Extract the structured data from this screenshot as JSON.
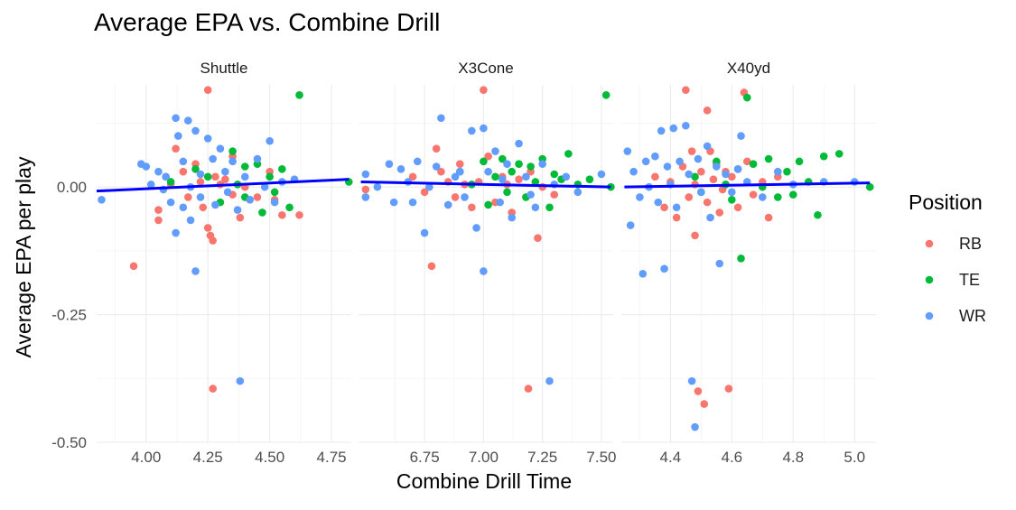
{
  "chart_data": {
    "type": "scatter",
    "title": "Average EPA vs. Combine Drill",
    "xlabel": "Combine Drill Time",
    "ylabel": "Average EPA per play",
    "ylim": [
      -0.5,
      0.2
    ],
    "y_ticks": [
      -0.5,
      -0.25,
      0.0
    ],
    "y_tick_labels": [
      "-0.50",
      "-0.25",
      "0.00"
    ],
    "legend": {
      "title": "Position",
      "placement": "right",
      "entries": [
        {
          "label": "RB",
          "color": "#F8766D"
        },
        {
          "label": "TE",
          "color": "#00BA38"
        },
        {
          "label": "WR",
          "color": "#619CFF"
        }
      ]
    },
    "fit_line_color": "#0000FF",
    "grid": true,
    "panels": [
      {
        "name": "Shuttle",
        "xlim": [
          3.8,
          4.83
        ],
        "x_ticks": [
          4.0,
          4.25,
          4.5,
          4.75
        ],
        "x_tick_labels": [
          "4.00",
          "4.25",
          "4.50",
          "4.75"
        ],
        "fit": [
          [
            3.8,
            -0.008
          ],
          [
            4.82,
            0.015
          ]
        ],
        "points": {
          "RB": [
            [
              3.95,
              -0.155
            ],
            [
              4.05,
              -0.045
            ],
            [
              4.05,
              -0.065
            ],
            [
              4.08,
              0.02
            ],
            [
              4.1,
              0.005
            ],
            [
              4.12,
              0.075
            ],
            [
              4.15,
              0.03
            ],
            [
              4.17,
              -0.02
            ],
            [
              4.2,
              0.045
            ],
            [
              4.22,
              0.01
            ],
            [
              4.23,
              -0.04
            ],
            [
              4.25,
              0.19
            ],
            [
              4.25,
              -0.08
            ],
            [
              4.26,
              -0.095
            ],
            [
              4.27,
              -0.105
            ],
            [
              4.27,
              -0.395
            ],
            [
              4.28,
              0.02
            ],
            [
              4.3,
              0.005
            ],
            [
              4.32,
              0.015
            ],
            [
              4.35,
              0.06
            ],
            [
              4.35,
              -0.015
            ],
            [
              4.38,
              -0.06
            ],
            [
              4.4,
              0.0
            ],
            [
              4.45,
              -0.02
            ],
            [
              4.5,
              0.03
            ],
            [
              4.52,
              -0.025
            ],
            [
              4.55,
              -0.055
            ],
            [
              4.62,
              -0.055
            ]
          ],
          "TE": [
            [
              4.1,
              0.01
            ],
            [
              4.2,
              0.035
            ],
            [
              4.25,
              0.02
            ],
            [
              4.3,
              -0.03
            ],
            [
              4.35,
              0.07
            ],
            [
              4.37,
              0.005
            ],
            [
              4.4,
              0.04
            ],
            [
              4.4,
              -0.02
            ],
            [
              4.45,
              0.045
            ],
            [
              4.47,
              -0.05
            ],
            [
              4.5,
              0.02
            ],
            [
              4.52,
              -0.01
            ],
            [
              4.55,
              0.035
            ],
            [
              4.58,
              -0.04
            ],
            [
              4.62,
              0.18
            ],
            [
              4.82,
              0.01
            ]
          ],
          "WR": [
            [
              3.82,
              -0.025
            ],
            [
              3.98,
              0.045
            ],
            [
              4.0,
              0.04
            ],
            [
              4.02,
              0.005
            ],
            [
              4.05,
              0.03
            ],
            [
              4.07,
              -0.005
            ],
            [
              4.08,
              0.02
            ],
            [
              4.1,
              -0.03
            ],
            [
              4.12,
              0.135
            ],
            [
              4.12,
              -0.09
            ],
            [
              4.13,
              0.1
            ],
            [
              4.15,
              0.05
            ],
            [
              4.15,
              -0.04
            ],
            [
              4.17,
              0.13
            ],
            [
              4.18,
              0.0
            ],
            [
              4.18,
              -0.065
            ],
            [
              4.2,
              -0.165
            ],
            [
              4.2,
              0.11
            ],
            [
              4.22,
              0.025
            ],
            [
              4.22,
              -0.02
            ],
            [
              4.25,
              0.095
            ],
            [
              4.27,
              0.055
            ],
            [
              4.28,
              -0.035
            ],
            [
              4.3,
              0.075
            ],
            [
              4.32,
              0.03
            ],
            [
              4.33,
              -0.01
            ],
            [
              4.35,
              0.05
            ],
            [
              4.37,
              -0.045
            ],
            [
              4.38,
              -0.38
            ],
            [
              4.4,
              0.02
            ],
            [
              4.42,
              -0.025
            ],
            [
              4.45,
              0.055
            ],
            [
              4.48,
              0.0
            ],
            [
              4.5,
              0.09
            ],
            [
              4.52,
              -0.03
            ],
            [
              4.55,
              0.01
            ],
            [
              4.6,
              0.015
            ]
          ]
        }
      },
      {
        "name": "X3Cone",
        "xlim": [
          6.47,
          7.55
        ],
        "x_ticks": [
          6.75,
          7.0,
          7.25,
          7.5
        ],
        "x_tick_labels": [
          "6.75",
          "7.00",
          "7.25",
          "7.50"
        ],
        "fit": [
          [
            6.48,
            0.01
          ],
          [
            7.54,
            0.0
          ]
        ],
        "points": {
          "RB": [
            [
              6.5,
              -0.005
            ],
            [
              6.7,
              0.02
            ],
            [
              6.75,
              -0.01
            ],
            [
              6.78,
              -0.155
            ],
            [
              6.8,
              0.075
            ],
            [
              6.82,
              0.03
            ],
            [
              6.85,
              0.01
            ],
            [
              6.88,
              -0.02
            ],
            [
              6.9,
              0.045
            ],
            [
              6.92,
              0.005
            ],
            [
              6.95,
              -0.04
            ],
            [
              6.98,
              0.01
            ],
            [
              7.0,
              0.19
            ],
            [
              7.02,
              0.06
            ],
            [
              7.05,
              -0.03
            ],
            [
              7.08,
              0.02
            ],
            [
              7.1,
              0.005
            ],
            [
              7.12,
              -0.05
            ],
            [
              7.15,
              0.015
            ],
            [
              7.19,
              -0.395
            ],
            [
              7.2,
              0.03
            ],
            [
              7.23,
              -0.1
            ],
            [
              7.25,
              0.0
            ],
            [
              7.3,
              -0.015
            ]
          ],
          "TE": [
            [
              6.9,
              0.03
            ],
            [
              6.95,
              0.005
            ],
            [
              7.0,
              0.05
            ],
            [
              7.02,
              -0.035
            ],
            [
              7.05,
              0.02
            ],
            [
              7.08,
              0.055
            ],
            [
              7.1,
              -0.01
            ],
            [
              7.12,
              0.03
            ],
            [
              7.15,
              0.045
            ],
            [
              7.18,
              -0.02
            ],
            [
              7.2,
              0.04
            ],
            [
              7.22,
              0.01
            ],
            [
              7.25,
              0.055
            ],
            [
              7.28,
              -0.04
            ],
            [
              7.3,
              0.025
            ],
            [
              7.33,
              0.015
            ],
            [
              7.36,
              0.065
            ],
            [
              7.4,
              0.005
            ],
            [
              7.45,
              0.015
            ],
            [
              7.52,
              0.18
            ],
            [
              7.54,
              0.0
            ]
          ],
          "WR": [
            [
              6.5,
              0.025
            ],
            [
              6.5,
              -0.02
            ],
            [
              6.55,
              0.0
            ],
            [
              6.6,
              0.045
            ],
            [
              6.62,
              -0.03
            ],
            [
              6.65,
              0.035
            ],
            [
              6.68,
              0.01
            ],
            [
              6.7,
              -0.03
            ],
            [
              6.72,
              0.05
            ],
            [
              6.75,
              -0.09
            ],
            [
              6.77,
              0.0
            ],
            [
              6.8,
              0.04
            ],
            [
              6.82,
              0.135
            ],
            [
              6.85,
              -0.035
            ],
            [
              6.88,
              0.02
            ],
            [
              6.9,
              0.03
            ],
            [
              6.92,
              -0.02
            ],
            [
              6.95,
              0.11
            ],
            [
              6.97,
              -0.08
            ],
            [
              7.0,
              0.115
            ],
            [
              7.0,
              -0.165
            ],
            [
              7.02,
              0.03
            ],
            [
              7.05,
              0.07
            ],
            [
              7.07,
              -0.03
            ],
            [
              7.08,
              0.015
            ],
            [
              7.1,
              0.045
            ],
            [
              7.12,
              -0.06
            ],
            [
              7.15,
              0.085
            ],
            [
              7.18,
              0.02
            ],
            [
              7.2,
              -0.015
            ],
            [
              7.22,
              -0.04
            ],
            [
              7.25,
              0.045
            ],
            [
              7.28,
              -0.38
            ],
            [
              7.3,
              0.005
            ],
            [
              7.35,
              0.02
            ],
            [
              7.4,
              -0.01
            ],
            [
              7.5,
              0.025
            ]
          ]
        }
      },
      {
        "name": "X40yd",
        "xlim": [
          4.24,
          5.07
        ],
        "x_ticks": [
          4.4,
          4.6,
          4.8,
          5.0
        ],
        "x_tick_labels": [
          "4.4",
          "4.6",
          "4.8",
          "5.0"
        ],
        "fit": [
          [
            4.25,
            0.0
          ],
          [
            5.05,
            0.008
          ]
        ],
        "points": {
          "RB": [
            [
              4.35,
              0.02
            ],
            [
              4.38,
              -0.04
            ],
            [
              4.4,
              0.01
            ],
            [
              4.42,
              -0.06
            ],
            [
              4.44,
              0.04
            ],
            [
              4.45,
              0.19
            ],
            [
              4.46,
              -0.02
            ],
            [
              4.47,
              0.07
            ],
            [
              4.48,
              -0.095
            ],
            [
              4.48,
              0.005
            ],
            [
              4.49,
              -0.4
            ],
            [
              4.5,
              0.03
            ],
            [
              4.51,
              -0.425
            ],
            [
              4.52,
              0.15
            ],
            [
              4.52,
              -0.03
            ],
            [
              4.53,
              0.07
            ],
            [
              4.54,
              0.015
            ],
            [
              4.55,
              0.045
            ],
            [
              4.56,
              -0.05
            ],
            [
              4.57,
              -0.005
            ],
            [
              4.58,
              0.03
            ],
            [
              4.59,
              -0.395
            ],
            [
              4.6,
              0.02
            ],
            [
              4.62,
              -0.04
            ],
            [
              4.64,
              0.185
            ],
            [
              4.65,
              0.05
            ],
            [
              4.67,
              -0.015
            ],
            [
              4.7,
              0.01
            ],
            [
              4.72,
              -0.06
            ],
            [
              4.75,
              0.02
            ]
          ],
          "TE": [
            [
              4.48,
              0.02
            ],
            [
              4.5,
              -0.01
            ],
            [
              4.55,
              0.05
            ],
            [
              4.58,
              0.005
            ],
            [
              4.6,
              -0.025
            ],
            [
              4.62,
              0.035
            ],
            [
              4.63,
              -0.14
            ],
            [
              4.65,
              0.175
            ],
            [
              4.67,
              0.045
            ],
            [
              4.7,
              0.0
            ],
            [
              4.72,
              0.055
            ],
            [
              4.75,
              -0.02
            ],
            [
              4.78,
              0.03
            ],
            [
              4.8,
              -0.015
            ],
            [
              4.82,
              0.05
            ],
            [
              4.85,
              0.01
            ],
            [
              4.88,
              -0.055
            ],
            [
              4.9,
              0.06
            ],
            [
              4.95,
              0.065
            ],
            [
              5.05,
              0.0
            ]
          ],
          "WR": [
            [
              4.26,
              0.07
            ],
            [
              4.27,
              -0.075
            ],
            [
              4.28,
              0.03
            ],
            [
              4.3,
              -0.02
            ],
            [
              4.31,
              -0.17
            ],
            [
              4.32,
              0.05
            ],
            [
              4.33,
              0.0
            ],
            [
              4.35,
              0.06
            ],
            [
              4.36,
              -0.03
            ],
            [
              4.37,
              0.11
            ],
            [
              4.38,
              -0.16
            ],
            [
              4.39,
              0.04
            ],
            [
              4.4,
              0.005
            ],
            [
              4.41,
              0.115
            ],
            [
              4.42,
              -0.04
            ],
            [
              4.43,
              0.05
            ],
            [
              4.45,
              0.12
            ],
            [
              4.46,
              0.025
            ],
            [
              4.47,
              -0.38
            ],
            [
              4.48,
              -0.47
            ],
            [
              4.49,
              0.055
            ],
            [
              4.5,
              -0.01
            ],
            [
              4.52,
              0.08
            ],
            [
              4.53,
              -0.06
            ],
            [
              4.55,
              0.04
            ],
            [
              4.56,
              -0.15
            ],
            [
              4.58,
              0.025
            ],
            [
              4.6,
              -0.01
            ],
            [
              4.62,
              0.035
            ],
            [
              4.63,
              0.1
            ],
            [
              4.65,
              0.01
            ],
            [
              4.7,
              -0.02
            ],
            [
              4.75,
              0.03
            ],
            [
              4.8,
              0.005
            ],
            [
              4.9,
              0.01
            ],
            [
              5.0,
              0.01
            ]
          ]
        }
      }
    ]
  }
}
